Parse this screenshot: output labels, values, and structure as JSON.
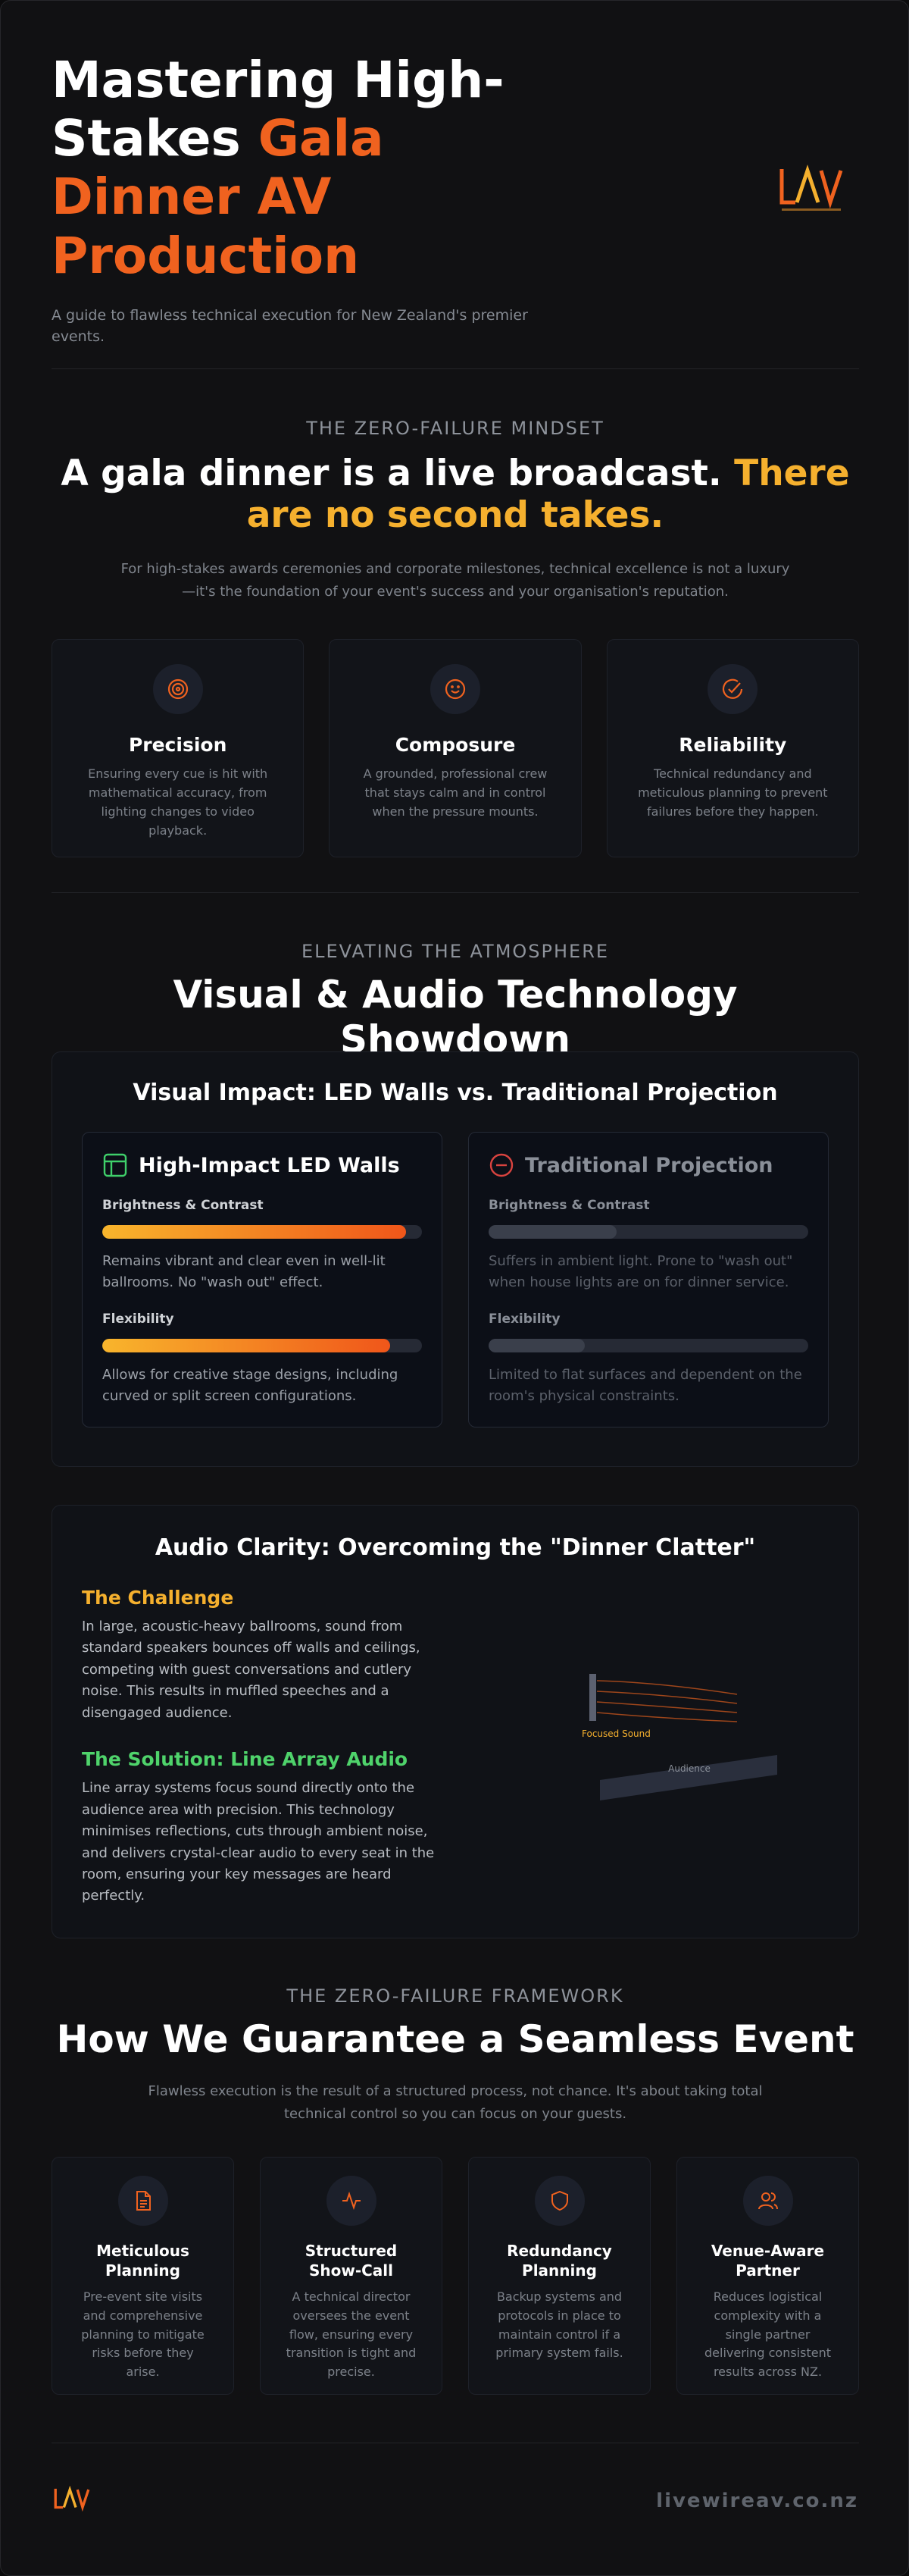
{
  "header": {
    "title": "Mastering High-Stakes",
    "title_highlight": "Gala Dinner AV Production",
    "subtitle": "A guide to flawless technical execution for New Zealand's premier events."
  },
  "mindset": {
    "eyebrow": "THE ZERO-FAILURE MINDSET",
    "headline": "A gala dinner is a live broadcast.",
    "headline_highlight": "There are no second takes.",
    "intro": "For high-stakes awards ceremonies and corporate milestones, technical excellence is not a luxury—it's the foundation of your event's success and your organisation's reputation.",
    "pillars": [
      {
        "title": "Precision",
        "text": "Ensuring every cue is hit with mathematical accuracy, from lighting changes to video playback."
      },
      {
        "title": "Composure",
        "text": "A grounded, professional crew that stays calm and in control when the pressure mounts."
      },
      {
        "title": "Reliability",
        "text": "Technical redundancy and meticulous planning to prevent failures before they happen."
      }
    ]
  },
  "technology": {
    "eyebrow": "ELEVATING THE ATMOSPHERE",
    "title": "Visual & Audio Technology Showdown",
    "visual": {
      "title": "Visual Impact: LED Walls vs. Traditional Projection",
      "options": [
        {
          "title": "High-Impact LED Walls",
          "metrics": [
            {
              "label": "Brightness & Contrast",
              "level": 95,
              "text": "Remains vibrant and clear even in well-lit ballrooms. No \"wash out\" effect."
            },
            {
              "label": "Flexibility",
              "level": 90,
              "text": "Allows for creative stage designs, including curved or split screen configurations."
            }
          ]
        },
        {
          "title": "Traditional Projection",
          "metrics": [
            {
              "label": "Brightness & Contrast",
              "level": 40,
              "text": "Suffers in ambient light. Prone to \"wash out\" when house lights are on for dinner service."
            },
            {
              "label": "Flexibility",
              "level": 30,
              "text": "Limited to flat surfaces and dependent on the room's physical constraints."
            }
          ]
        }
      ]
    },
    "audio": {
      "title": "Audio Clarity: Overcoming the \"Dinner Clatter\"",
      "challenge": {
        "title": "The Challenge",
        "text": "In large, acoustic-heavy ballrooms, sound from standard speakers bounces off walls and ceilings, competing with guest conversations and cutlery noise. This results in muffled speeches and a disengaged audience."
      },
      "solution": {
        "title": "The Solution: Line Array Audio",
        "text": "Line array systems focus sound directly onto the audience area with precision. This technology minimises reflections, cuts through ambient noise, and delivers crystal-clear audio to every seat in the room, ensuring your key messages are heard perfectly."
      },
      "diagram": {
        "sound_label": "Focused Sound",
        "audience_label": "Audience"
      }
    }
  },
  "framework": {
    "eyebrow": "THE ZERO-FAILURE FRAMEWORK",
    "title": "How We Guarantee a Seamless Event",
    "intro": "Flawless execution is the result of a structured process, not chance. It's about taking total technical control so you can focus on your guests.",
    "steps": [
      {
        "title": "Meticulous Planning",
        "text": "Pre-event site visits and comprehensive planning to mitigate risks before they arise."
      },
      {
        "title": "Structured Show-Call",
        "text": "A technical director oversees the event flow, ensuring every transition is tight and precise."
      },
      {
        "title": "Redundancy Planning",
        "text": "Backup systems and protocols in place to maintain control if a primary system fails."
      },
      {
        "title": "Venue-Aware Partner",
        "text": "Reduces logistical complexity with a single partner delivering consistent results across NZ."
      }
    ]
  },
  "footer": {
    "url": "livewireav.co.nz"
  }
}
